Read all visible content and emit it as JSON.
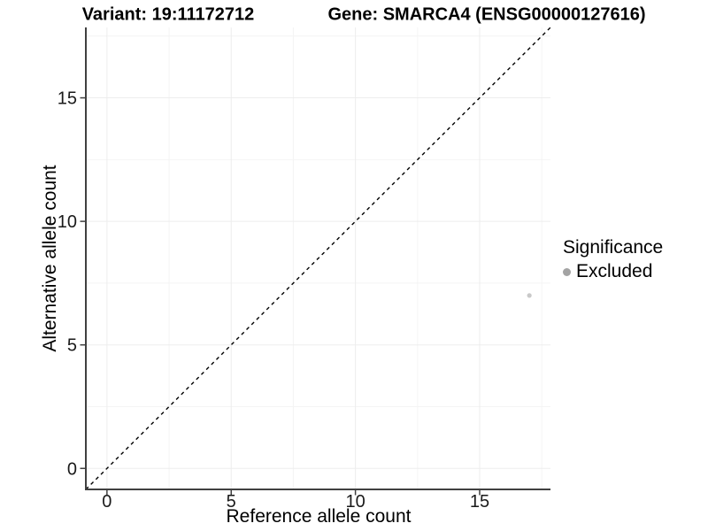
{
  "header": {
    "title_left": "Variant: 19:11172712",
    "title_right": "Gene: SMARCA4 (ENSG00000127616)"
  },
  "chart_data": {
    "type": "scatter",
    "title": "Variant: 19:11172712 — Gene: SMARCA4 (ENSG00000127616)",
    "xlabel": "Reference allele count",
    "ylabel": "Alternative allele count",
    "xlim": [
      -0.85,
      17.85
    ],
    "ylim": [
      -0.85,
      17.85
    ],
    "x_major_ticks": [
      0,
      5,
      10,
      15
    ],
    "y_major_ticks": [
      0,
      5,
      10,
      15
    ],
    "x_minor_gridlines": [
      2.5,
      7.5,
      12.5,
      17.5
    ],
    "y_minor_gridlines": [
      2.5,
      7.5,
      12.5,
      17.5
    ],
    "grid": true,
    "identity_line": {
      "style": "dashed",
      "color": "#000000",
      "slope": 1,
      "intercept": 0
    },
    "series": [
      {
        "name": "Excluded",
        "color": "#c9c9c9",
        "points": [
          {
            "x": 17,
            "y": 7
          }
        ]
      }
    ],
    "legend": {
      "title": "Significance",
      "position": "right",
      "items": [
        {
          "label": "Excluded",
          "color": "#a3a3a3"
        }
      ]
    },
    "colors": {
      "axis_line": "#404040",
      "tick_mark": "#404040",
      "tick_label": "#1a1a1a",
      "grid_major": "#ededed",
      "grid_minor": "#f4f4f4",
      "background": "#ffffff"
    }
  }
}
